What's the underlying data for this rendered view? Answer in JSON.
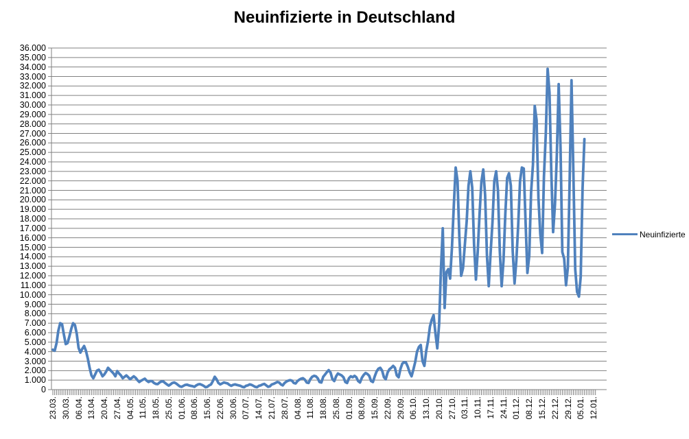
{
  "title": "Neuinfizierte in Deutschland",
  "legend": {
    "label": "Neuinfizierte"
  },
  "colors": {
    "line": "#4F81BD",
    "grid": "#808080",
    "text": "#000000",
    "background": "#FFFFFF"
  },
  "chart_data": {
    "type": "line",
    "title": "Neuinfizierte in Deutschland",
    "series_name": "Neuinfizierte",
    "legend_position": "right",
    "grid": true,
    "ylim": [
      0,
      36000
    ],
    "y_step": 1000,
    "points_per_tick": 7,
    "y_tick_labels": [
      "0",
      "1.000",
      "2.000",
      "3.000",
      "4.000",
      "5.000",
      "6.000",
      "7.000",
      "8.000",
      "9.000",
      "10.000",
      "11.000",
      "12.000",
      "13.000",
      "14.000",
      "15.000",
      "16.000",
      "17.000",
      "18.000",
      "19.000",
      "20.000",
      "21.000",
      "22.000",
      "23.000",
      "24.000",
      "25.000",
      "26.000",
      "27.000",
      "28.000",
      "29.000",
      "30.000",
      "31.000",
      "32.000",
      "33.000",
      "34.000",
      "35.000",
      "36.000"
    ],
    "x_tick_labels": [
      "23.03.",
      "30.03.",
      "06.04.",
      "13.04.",
      "20.04.",
      "27.04.",
      "04.05.",
      "11.05.",
      "18.05.",
      "25.05.",
      "01.06.",
      "08.06.",
      "15.06.",
      "22.06.",
      "30.06.",
      "07.07.",
      "14.07.",
      "21.07.",
      "28.07.",
      "04.08.",
      "11.08.",
      "18.08.",
      "25.08.",
      "01.09.",
      "08.09.",
      "15.09.",
      "22.09.",
      "29.09.",
      "06.10.",
      "13.10.",
      "20.10.",
      "27.10.",
      "03.11.",
      "10.11.",
      "17.11.",
      "24.11.",
      "01.12.",
      "08.12.",
      "15.12.",
      "22.12.",
      "29.12.",
      "05.01.",
      "12.01."
    ],
    "values": [
      4200,
      4100,
      4900,
      6200,
      7000,
      6900,
      5800,
      4800,
      4900,
      5600,
      6400,
      7000,
      6800,
      5900,
      4400,
      3900,
      4300,
      4600,
      4100,
      3300,
      2300,
      1500,
      1200,
      1600,
      2000,
      2100,
      1800,
      1400,
      1600,
      1900,
      2300,
      2100,
      1900,
      1700,
      1400,
      1950,
      1700,
      1500,
      1200,
      1350,
      1500,
      1300,
      1100,
      1250,
      1400,
      1250,
      1000,
      800,
      950,
      1050,
      1150,
      950,
      800,
      900,
      880,
      700,
      600,
      580,
      750,
      850,
      870,
      700,
      550,
      430,
      550,
      700,
      750,
      650,
      500,
      350,
      300,
      400,
      500,
      520,
      450,
      400,
      360,
      300,
      450,
      550,
      580,
      500,
      400,
      250,
      300,
      450,
      550,
      900,
      1350,
      1100,
      700,
      550,
      650,
      750,
      700,
      650,
      500,
      400,
      500,
      550,
      500,
      450,
      400,
      300,
      250,
      400,
      450,
      550,
      500,
      400,
      300,
      250,
      400,
      450,
      550,
      600,
      450,
      300,
      350,
      550,
      600,
      700,
      800,
      750,
      550,
      450,
      700,
      850,
      950,
      1000,
      950,
      700,
      650,
      900,
      1050,
      1150,
      1200,
      1050,
      750,
      700,
      1100,
      1350,
      1450,
      1400,
      1200,
      800,
      750,
      1350,
      1600,
      1850,
      2050,
      1800,
      1100,
      900,
      1400,
      1700,
      1600,
      1500,
      1300,
      800,
      700,
      1200,
      1400,
      1300,
      1450,
      1300,
      900,
      750,
      1250,
      1550,
      1750,
      1650,
      1450,
      900,
      800,
      1400,
      1900,
      2200,
      2300,
      2000,
      1300,
      1100,
      1800,
      2150,
      2300,
      2500,
      2300,
      1500,
      1300,
      2200,
      2750,
      2900,
      2850,
      2400,
      1800,
      1400,
      2100,
      2900,
      4000,
      4500,
      4700,
      3000,
      2500,
      4100,
      5150,
      6650,
      7350,
      7850,
      5950,
      4350,
      6900,
      12600,
      17000,
      8600,
      12400,
      12700,
      11700,
      15000,
      19400,
      23400,
      22000,
      16200,
      12000,
      12800,
      15300,
      17800,
      21500,
      23000,
      21300,
      15300,
      11600,
      14500,
      18500,
      21900,
      23200,
      20500,
      14100,
      10900,
      14400,
      17600,
      22000,
      23000,
      21000,
      14600,
      10900,
      13600,
      18600,
      22300,
      22800,
      21500,
      14600,
      11200,
      13600,
      17300,
      22000,
      23400,
      23300,
      17800,
      12300,
      14100,
      20800,
      23700,
      29900,
      28400,
      20200,
      16400,
      14400,
      22400,
      26900,
      33800,
      31300,
      22800,
      16600,
      19500,
      24700,
      32200,
      25500,
      14500,
      13800,
      11000,
      12900,
      22500,
      32600,
      22900,
      12700,
      10300,
      9800,
      11900,
      21200,
      26400
    ]
  }
}
